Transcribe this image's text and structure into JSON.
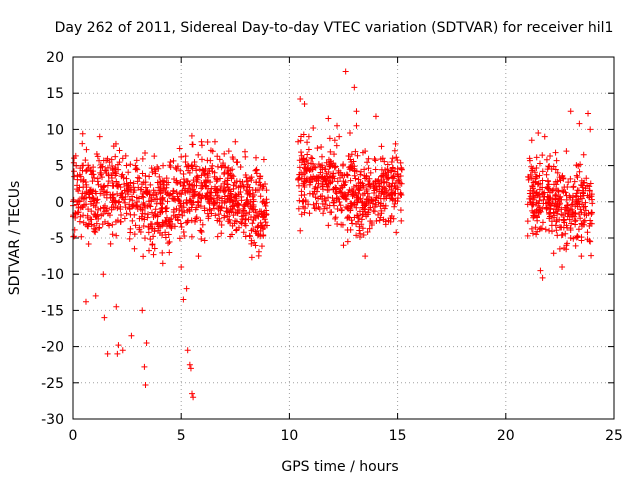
{
  "chart_data": {
    "type": "scatter",
    "title": "Day 262 of 2011, Sidereal Day-to-day VTEC variation (SDTVAR) for receiver hil1",
    "xlabel": "GPS time / hours",
    "ylabel": "SDTVAR / TECUs",
    "xlim": [
      0,
      25
    ],
    "ylim": [
      -30,
      20
    ],
    "xticks": [
      "0",
      "5",
      "10",
      "15",
      "20",
      "25"
    ],
    "yticks": [
      "20",
      "15",
      "10",
      "5",
      "0",
      "-5",
      "-10",
      "-15",
      "-20",
      "-25",
      "-30"
    ],
    "grid": true,
    "marker": "plus",
    "color": "#ff0000",
    "series": [
      {
        "name": "hil1",
        "segments": [
          {
            "x_start": 0.0,
            "x_end": 9.0,
            "typical_range": [
              -4,
              5
            ]
          },
          {
            "x_start": 10.4,
            "x_end": 15.2,
            "typical_range": [
              -2,
              6
            ]
          },
          {
            "x_start": 21.0,
            "x_end": 24.0,
            "typical_range": [
              -4,
              5
            ]
          }
        ],
        "points": [
          [
            0.45,
            9.4
          ],
          [
            1.05,
            -13.0
          ],
          [
            1.6,
            -21.0
          ],
          [
            2.3,
            -20.5
          ],
          [
            2.7,
            -18.5
          ],
          [
            3.3,
            -22.8
          ],
          [
            3.35,
            -25.3
          ],
          [
            3.2,
            -15.0
          ],
          [
            3.4,
            -19.5
          ],
          [
            1.45,
            -16.0
          ],
          [
            2.05,
            -21.0
          ],
          [
            2.1,
            -19.8
          ],
          [
            0.6,
            -13.8
          ],
          [
            1.4,
            -10.0
          ],
          [
            2.0,
            -14.5
          ],
          [
            4.15,
            -8.5
          ],
          [
            5.1,
            -13.5
          ],
          [
            5.25,
            -12.0
          ],
          [
            5.4,
            -22.5
          ],
          [
            5.45,
            -23.0
          ],
          [
            5.5,
            -26.5
          ],
          [
            5.55,
            -27.0
          ],
          [
            5.3,
            -20.5
          ],
          [
            5.0,
            -9.0
          ],
          [
            5.8,
            -7.5
          ],
          [
            2.3,
            6.0
          ],
          [
            4.5,
            5.5
          ],
          [
            5.0,
            6.2
          ],
          [
            7.5,
            8.3
          ],
          [
            7.2,
            7.0
          ],
          [
            7.6,
            5.5
          ],
          [
            7.8,
            -3.0
          ],
          [
            8.9,
            -2.8
          ],
          [
            7.5,
            -1.5
          ],
          [
            10.4,
            8.3
          ],
          [
            10.5,
            14.2
          ],
          [
            10.7,
            13.5
          ],
          [
            10.9,
            9.0
          ],
          [
            11.1,
            10.2
          ],
          [
            10.5,
            -4.0
          ],
          [
            10.7,
            -1.5
          ],
          [
            11.1,
            3.5
          ],
          [
            11.8,
            11.5
          ],
          [
            12.1,
            8.5
          ],
          [
            12.2,
            10.5
          ],
          [
            12.6,
            18.0
          ],
          [
            12.8,
            9.5
          ],
          [
            13.0,
            15.8
          ],
          [
            13.1,
            10.5
          ],
          [
            13.4,
            6.8
          ],
          [
            13.5,
            7.0
          ],
          [
            14.0,
            11.8
          ],
          [
            12.5,
            -6.0
          ],
          [
            12.7,
            -5.5
          ],
          [
            13.5,
            -7.5
          ],
          [
            12.9,
            -3.0
          ],
          [
            12.0,
            5.0
          ],
          [
            13.1,
            12.5
          ],
          [
            12.3,
            9.0
          ],
          [
            21.2,
            8.5
          ],
          [
            21.4,
            -4.5
          ],
          [
            21.5,
            9.5
          ],
          [
            21.8,
            9.0
          ],
          [
            21.9,
            5.8
          ],
          [
            22.3,
            6.8
          ],
          [
            22.4,
            4.0
          ],
          [
            22.5,
            -3.5
          ],
          [
            22.6,
            -9.0
          ],
          [
            22.8,
            7.0
          ],
          [
            23.0,
            12.5
          ],
          [
            23.4,
            10.8
          ],
          [
            23.6,
            6.5
          ],
          [
            23.8,
            12.2
          ],
          [
            23.9,
            10.0
          ],
          [
            21.6,
            -9.5
          ],
          [
            21.7,
            -10.5
          ],
          [
            22.5,
            -6.5
          ],
          [
            23.0,
            -5.0
          ],
          [
            23.5,
            -3.0
          ],
          [
            21.3,
            -2.0
          ],
          [
            22.0,
            -4.0
          ],
          [
            23.9,
            -5.5
          ],
          [
            22.8,
            -6.0
          ],
          [
            21.1,
            6.0
          ]
        ]
      }
    ]
  }
}
